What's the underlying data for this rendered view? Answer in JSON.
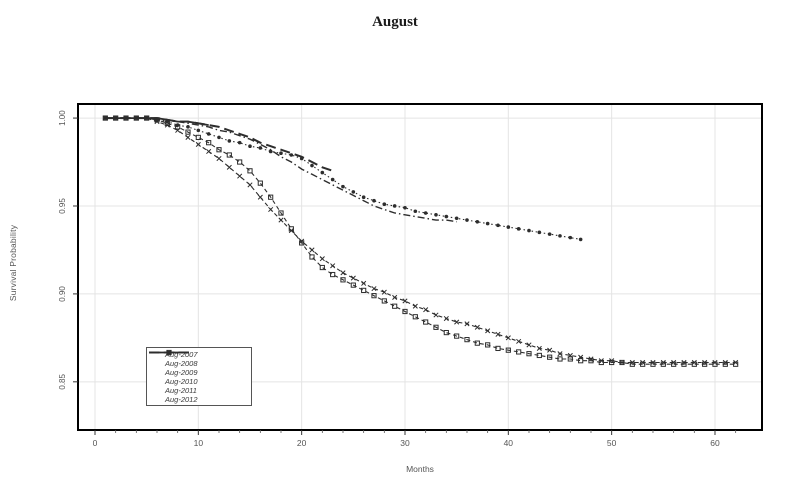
{
  "figure": {
    "background": "#ffffff"
  },
  "chart_data": {
    "type": "line",
    "title": "August",
    "xlabel": "Months",
    "ylabel": "Survival Probability",
    "xlim": [
      -1.645,
      64.55
    ],
    "ylim": [
      0.8226,
      1.008
    ],
    "x_ticks": [
      0,
      10,
      20,
      30,
      40,
      50,
      60
    ],
    "x_minor_step": 2,
    "x_minor_max": 62,
    "y_ticks": [
      0.85,
      0.9,
      0.95,
      1.0
    ],
    "y_tick_labels": [
      "0.85",
      "0.90",
      "0.95",
      "1.00"
    ],
    "grid": true,
    "grid_color": "#e4e4e4",
    "axis_color": "#000000",
    "tick_label_color": "#555555",
    "line_color": "#2d2d2d",
    "legend_position": "lower-left",
    "series": [
      {
        "name": "Aug-2007",
        "line": "dashed",
        "marker": "square",
        "width": 1.1,
        "points": [
          [
            1,
            1
          ],
          [
            2,
            1
          ],
          [
            3,
            1
          ],
          [
            4,
            1
          ],
          [
            5,
            1
          ],
          [
            6,
            0.999
          ],
          [
            7,
            0.997
          ],
          [
            8,
            0.995
          ],
          [
            9,
            0.992
          ],
          [
            10,
            0.989
          ],
          [
            11,
            0.986
          ],
          [
            12,
            0.982
          ],
          [
            13,
            0.979
          ],
          [
            14,
            0.975
          ],
          [
            15,
            0.97
          ],
          [
            16,
            0.963
          ],
          [
            17,
            0.955
          ],
          [
            18,
            0.946
          ],
          [
            19,
            0.937
          ],
          [
            20,
            0.929
          ],
          [
            21,
            0.921
          ],
          [
            22,
            0.915
          ],
          [
            23,
            0.911
          ],
          [
            24,
            0.908
          ],
          [
            25,
            0.905
          ],
          [
            26,
            0.902
          ],
          [
            27,
            0.899
          ],
          [
            28,
            0.896
          ],
          [
            29,
            0.893
          ],
          [
            30,
            0.89
          ],
          [
            31,
            0.887
          ],
          [
            32,
            0.884
          ],
          [
            33,
            0.881
          ],
          [
            34,
            0.878
          ],
          [
            35,
            0.876
          ],
          [
            36,
            0.874
          ],
          [
            37,
            0.872
          ],
          [
            38,
            0.871
          ],
          [
            39,
            0.869
          ],
          [
            40,
            0.868
          ],
          [
            41,
            0.867
          ],
          [
            42,
            0.866
          ],
          [
            43,
            0.865
          ],
          [
            44,
            0.864
          ],
          [
            45,
            0.863
          ],
          [
            46,
            0.863
          ],
          [
            47,
            0.862
          ],
          [
            48,
            0.862
          ],
          [
            49,
            0.861
          ],
          [
            50,
            0.861
          ],
          [
            51,
            0.861
          ],
          [
            52,
            0.86
          ],
          [
            53,
            0.86
          ],
          [
            54,
            0.86
          ],
          [
            55,
            0.86
          ],
          [
            56,
            0.86
          ],
          [
            57,
            0.86
          ],
          [
            58,
            0.86
          ],
          [
            59,
            0.86
          ],
          [
            60,
            0.86
          ],
          [
            61,
            0.86
          ],
          [
            62,
            0.86
          ]
        ]
      },
      {
        "name": "Aug-2008",
        "line": "dashed",
        "marker": "x",
        "width": 1.1,
        "points": [
          [
            1,
            1
          ],
          [
            2,
            1
          ],
          [
            3,
            1
          ],
          [
            4,
            1
          ],
          [
            5,
            1
          ],
          [
            6,
            0.998
          ],
          [
            7,
            0.996
          ],
          [
            8,
            0.993
          ],
          [
            9,
            0.989
          ],
          [
            10,
            0.985
          ],
          [
            11,
            0.981
          ],
          [
            12,
            0.977
          ],
          [
            13,
            0.972
          ],
          [
            14,
            0.967
          ],
          [
            15,
            0.962
          ],
          [
            16,
            0.955
          ],
          [
            17,
            0.948
          ],
          [
            18,
            0.942
          ],
          [
            19,
            0.936
          ],
          [
            20,
            0.93
          ],
          [
            21,
            0.925
          ],
          [
            22,
            0.92
          ],
          [
            23,
            0.916
          ],
          [
            24,
            0.912
          ],
          [
            25,
            0.909
          ],
          [
            26,
            0.906
          ],
          [
            27,
            0.903
          ],
          [
            28,
            0.901
          ],
          [
            29,
            0.898
          ],
          [
            30,
            0.896
          ],
          [
            31,
            0.893
          ],
          [
            32,
            0.891
          ],
          [
            33,
            0.888
          ],
          [
            34,
            0.886
          ],
          [
            35,
            0.884
          ],
          [
            36,
            0.883
          ],
          [
            37,
            0.881
          ],
          [
            38,
            0.879
          ],
          [
            39,
            0.877
          ],
          [
            40,
            0.875
          ],
          [
            41,
            0.873
          ],
          [
            42,
            0.871
          ],
          [
            43,
            0.869
          ],
          [
            44,
            0.868
          ],
          [
            45,
            0.866
          ],
          [
            46,
            0.865
          ],
          [
            47,
            0.864
          ],
          [
            48,
            0.863
          ],
          [
            49,
            0.862
          ],
          [
            50,
            0.862
          ],
          [
            51,
            0.861
          ],
          [
            52,
            0.861
          ],
          [
            53,
            0.861
          ],
          [
            54,
            0.861
          ],
          [
            55,
            0.861
          ],
          [
            56,
            0.861
          ],
          [
            57,
            0.861
          ],
          [
            58,
            0.861
          ],
          [
            59,
            0.861
          ],
          [
            60,
            0.861
          ],
          [
            61,
            0.861
          ],
          [
            62,
            0.861
          ]
        ]
      },
      {
        "name": "Aug-2009",
        "line": "dotted",
        "marker": "circle",
        "width": 1.1,
        "points": [
          [
            1,
            1
          ],
          [
            2,
            1
          ],
          [
            3,
            1
          ],
          [
            4,
            1
          ],
          [
            5,
            1
          ],
          [
            6,
            0.999
          ],
          [
            7,
            0.998
          ],
          [
            8,
            0.996
          ],
          [
            9,
            0.995
          ],
          [
            10,
            0.993
          ],
          [
            11,
            0.991
          ],
          [
            12,
            0.989
          ],
          [
            13,
            0.987
          ],
          [
            14,
            0.986
          ],
          [
            15,
            0.984
          ],
          [
            16,
            0.983
          ],
          [
            17,
            0.981
          ],
          [
            18,
            0.98
          ],
          [
            19,
            0.979
          ],
          [
            20,
            0.977
          ],
          [
            21,
            0.973
          ],
          [
            22,
            0.969
          ],
          [
            23,
            0.965
          ],
          [
            24,
            0.961
          ],
          [
            25,
            0.958
          ],
          [
            26,
            0.955
          ],
          [
            27,
            0.953
          ],
          [
            28,
            0.951
          ],
          [
            29,
            0.95
          ],
          [
            30,
            0.949
          ],
          [
            31,
            0.947
          ],
          [
            32,
            0.946
          ],
          [
            33,
            0.945
          ],
          [
            34,
            0.944
          ],
          [
            35,
            0.943
          ],
          [
            36,
            0.942
          ],
          [
            37,
            0.941
          ],
          [
            38,
            0.94
          ],
          [
            39,
            0.939
          ],
          [
            40,
            0.938
          ],
          [
            41,
            0.937
          ],
          [
            42,
            0.936
          ],
          [
            43,
            0.935
          ],
          [
            44,
            0.934
          ],
          [
            45,
            0.933
          ],
          [
            46,
            0.932
          ],
          [
            47,
            0.931
          ]
        ]
      },
      {
        "name": "Aug-2010",
        "line": "dashdot",
        "marker": "none",
        "width": 1.4,
        "points": [
          [
            1,
            1
          ],
          [
            2,
            1
          ],
          [
            3,
            1
          ],
          [
            4,
            1
          ],
          [
            5,
            1
          ],
          [
            6,
            0.999
          ],
          [
            7,
            0.999
          ],
          [
            8,
            0.998
          ],
          [
            9,
            0.997
          ],
          [
            10,
            0.996
          ],
          [
            11,
            0.995
          ],
          [
            12,
            0.993
          ],
          [
            13,
            0.992
          ],
          [
            14,
            0.99
          ],
          [
            15,
            0.988
          ],
          [
            16,
            0.985
          ],
          [
            17,
            0.982
          ],
          [
            18,
            0.978
          ],
          [
            19,
            0.975
          ],
          [
            20,
            0.971
          ],
          [
            21,
            0.968
          ],
          [
            22,
            0.965
          ],
          [
            23,
            0.962
          ],
          [
            24,
            0.959
          ],
          [
            25,
            0.956
          ],
          [
            26,
            0.953
          ],
          [
            27,
            0.95
          ],
          [
            28,
            0.948
          ],
          [
            29,
            0.946
          ],
          [
            30,
            0.945
          ],
          [
            31,
            0.944
          ],
          [
            32,
            0.943
          ],
          [
            33,
            0.942
          ],
          [
            34,
            0.942
          ],
          [
            35,
            0.941
          ]
        ]
      },
      {
        "name": "Aug-2011",
        "line": "longdash",
        "marker": "none",
        "width": 2.0,
        "points": [
          [
            1,
            1
          ],
          [
            2,
            1
          ],
          [
            3,
            1
          ],
          [
            4,
            1
          ],
          [
            5,
            1
          ],
          [
            6,
            1
          ],
          [
            7,
            0.999
          ],
          [
            8,
            0.998
          ],
          [
            9,
            0.998
          ],
          [
            10,
            0.997
          ],
          [
            11,
            0.996
          ],
          [
            12,
            0.995
          ],
          [
            13,
            0.993
          ],
          [
            14,
            0.991
          ],
          [
            15,
            0.989
          ],
          [
            16,
            0.986
          ],
          [
            17,
            0.984
          ],
          [
            18,
            0.982
          ],
          [
            19,
            0.98
          ],
          [
            20,
            0.978
          ],
          [
            21,
            0.975
          ],
          [
            22,
            0.972
          ],
          [
            23,
            0.97
          ]
        ]
      },
      {
        "name": "Aug-2012",
        "line": "solid",
        "marker": "none",
        "width": 1.8,
        "points": [
          [
            1,
            1
          ],
          [
            2,
            1
          ],
          [
            3,
            1
          ],
          [
            4,
            1
          ],
          [
            5,
            1
          ],
          [
            6,
            1
          ],
          [
            7,
            0.999
          ],
          [
            8,
            0.998
          ],
          [
            9,
            0.998
          ],
          [
            10,
            0.997
          ],
          [
            11,
            0.996
          ]
        ]
      }
    ]
  }
}
